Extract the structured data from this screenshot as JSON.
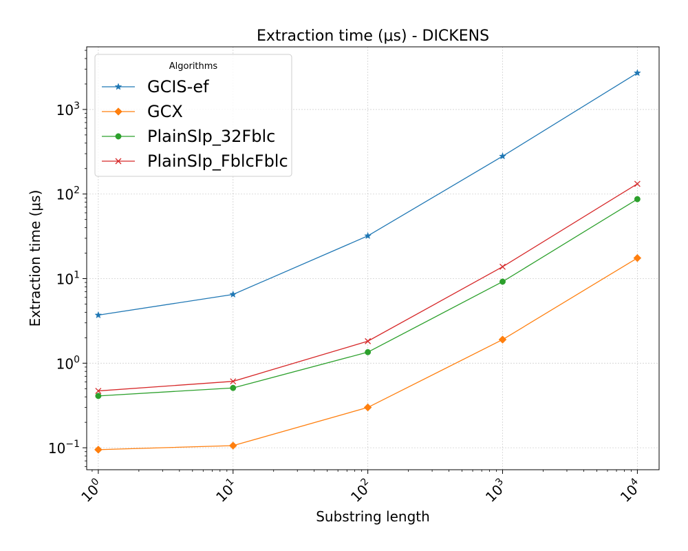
{
  "chart_data": {
    "type": "line",
    "title": "Extraction time (μs) - DICKENS",
    "xlabel": "Substring length",
    "ylabel": "Extraction time (μs)",
    "xscale": "log",
    "yscale": "log",
    "xlim": [
      0.82,
      14500
    ],
    "ylim": [
      0.055,
      5500
    ],
    "grid": true,
    "x": [
      1,
      10,
      100,
      1000,
      10000
    ],
    "x_ticks": [
      {
        "value": 1,
        "base": "10",
        "exp": "0"
      },
      {
        "value": 10,
        "base": "10",
        "exp": "1"
      },
      {
        "value": 100,
        "base": "10",
        "exp": "2"
      },
      {
        "value": 1000,
        "base": "10",
        "exp": "3"
      },
      {
        "value": 10000,
        "base": "10",
        "exp": "4"
      }
    ],
    "y_ticks": [
      {
        "value": 0.1,
        "base": "10",
        "exp": "−1"
      },
      {
        "value": 1,
        "base": "10",
        "exp": "0"
      },
      {
        "value": 10,
        "base": "10",
        "exp": "1"
      },
      {
        "value": 100,
        "base": "10",
        "exp": "2"
      },
      {
        "value": 1000,
        "base": "10",
        "exp": "3"
      }
    ],
    "legend": {
      "title": "Algorithms",
      "placement": "upper left"
    },
    "series": [
      {
        "name": "GCIS-ef",
        "color": "#1f77b4",
        "marker": "star",
        "values": [
          3.7,
          6.5,
          32,
          280,
          2700
        ]
      },
      {
        "name": "GCX",
        "color": "#ff7f0e",
        "marker": "diamond",
        "values": [
          0.095,
          0.106,
          0.3,
          1.9,
          17.5
        ]
      },
      {
        "name": "PlainSlp_32Fblc",
        "color": "#2ca02c",
        "marker": "circle",
        "values": [
          0.41,
          0.51,
          1.35,
          9.2,
          87
        ]
      },
      {
        "name": "PlainSlp_FblcFblc",
        "color": "#d62728",
        "marker": "x",
        "values": [
          0.47,
          0.61,
          1.82,
          13.8,
          132
        ]
      }
    ]
  }
}
